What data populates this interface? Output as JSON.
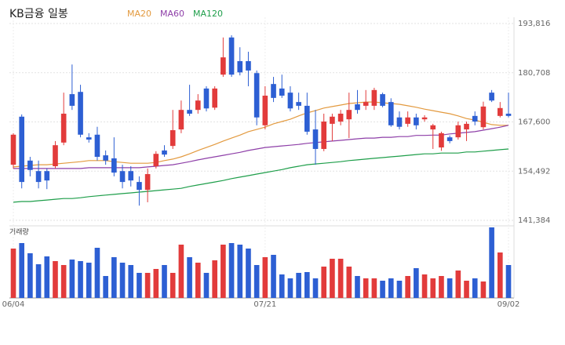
{
  "chart_data": {
    "type": "candlestick",
    "title": "KB금융 일봉",
    "volume_label": "거래량",
    "up_color": "#e23b3b",
    "down_color": "#2d5fd3",
    "grid": true,
    "categories": [
      "06/04",
      null,
      null,
      null,
      null,
      null,
      null,
      null,
      null,
      null,
      null,
      null,
      null,
      null,
      null,
      null,
      null,
      null,
      null,
      null,
      null,
      null,
      null,
      null,
      null,
      null,
      null,
      null,
      null,
      null,
      "07/21",
      null,
      null,
      null,
      null,
      null,
      null,
      null,
      null,
      null,
      null,
      null,
      null,
      null,
      null,
      null,
      null,
      null,
      null,
      null,
      null,
      null,
      null,
      null,
      null,
      null,
      null,
      null,
      null,
      "09/02"
    ],
    "open": [
      156200,
      169000,
      157300,
      154500,
      154500,
      155800,
      162100,
      175000,
      175600,
      163500,
      164200,
      158700,
      157900,
      154500,
      154500,
      151600,
      149500,
      155800,
      160000,
      161200,
      165600,
      170800,
      170800,
      176500,
      171400,
      180200,
      190100,
      183800,
      183800,
      180600,
      166700,
      177700,
      176500,
      175400,
      172900,
      171900,
      165600,
      160400,
      167100,
      167700,
      168300,
      172300,
      171900,
      171900,
      175000,
      172900,
      168800,
      167100,
      168800,
      168300,
      165600,
      160800,
      163500,
      163500,
      165600,
      169200,
      166200,
      175400,
      169200,
      169800
    ],
    "high": [
      164600,
      169600,
      158300,
      157300,
      155200,
      162500,
      175400,
      182900,
      177500,
      164600,
      166300,
      160000,
      163500,
      156200,
      155800,
      153100,
      155200,
      159800,
      161400,
      170800,
      173300,
      177500,
      175000,
      177100,
      177100,
      190100,
      190700,
      187500,
      186300,
      181300,
      177100,
      179600,
      180200,
      177100,
      175400,
      175400,
      170800,
      169800,
      169800,
      170800,
      175400,
      176100,
      176100,
      176700,
      175400,
      173900,
      170400,
      170400,
      169800,
      169400,
      167100,
      165000,
      164000,
      167700,
      167700,
      170400,
      173000,
      176100,
      172900,
      175400
    ],
    "low": [
      155200,
      149900,
      153100,
      149900,
      149700,
      155200,
      161400,
      170800,
      163500,
      162100,
      157300,
      156200,
      153100,
      149900,
      150400,
      145300,
      146200,
      155200,
      158300,
      160400,
      164600,
      169200,
      169800,
      170400,
      170800,
      179600,
      179600,
      180000,
      177100,
      166700,
      165600,
      172900,
      174000,
      170400,
      170800,
      164200,
      156200,
      159800,
      162500,
      166700,
      163300,
      169800,
      170800,
      170800,
      171500,
      166300,
      165600,
      166300,
      165600,
      167700,
      160400,
      159900,
      161900,
      162900,
      162500,
      166700,
      165600,
      172900,
      168800,
      168800
    ],
    "close": [
      164200,
      151600,
      154800,
      151600,
      152000,
      161400,
      169800,
      171900,
      164200,
      162900,
      158300,
      157300,
      154100,
      151600,
      152000,
      149500,
      153700,
      159100,
      158900,
      165400,
      170800,
      169800,
      173300,
      171200,
      176500,
      184800,
      180200,
      180800,
      181300,
      168800,
      174600,
      174000,
      174600,
      171200,
      171900,
      165000,
      160400,
      167700,
      169000,
      169800,
      170800,
      170800,
      172900,
      176100,
      171900,
      166700,
      166300,
      168800,
      166700,
      168800,
      166700,
      164600,
      162500,
      166700,
      167100,
      167700,
      171700,
      173300,
      171300,
      169200
    ],
    "volume": [
      630000,
      700000,
      570000,
      430000,
      530000,
      470000,
      420000,
      490000,
      470000,
      450000,
      640000,
      280000,
      520000,
      450000,
      420000,
      320000,
      320000,
      370000,
      420000,
      320000,
      680000,
      520000,
      450000,
      320000,
      480000,
      680000,
      700000,
      680000,
      630000,
      420000,
      520000,
      550000,
      300000,
      250000,
      320000,
      330000,
      250000,
      400000,
      500000,
      500000,
      400000,
      280000,
      250000,
      250000,
      220000,
      250000,
      220000,
      280000,
      380000,
      300000,
      250000,
      280000,
      250000,
      350000,
      220000,
      250000,
      210000,
      900000,
      580000,
      420000
    ],
    "series": [
      {
        "name": "MA20",
        "color": "#e39a3f",
        "values": [
          155600,
          155800,
          156000,
          156200,
          156200,
          156400,
          156600,
          156800,
          157000,
          157300,
          157300,
          157300,
          157000,
          156800,
          156600,
          156600,
          156600,
          156800,
          157300,
          157700,
          158300,
          159100,
          160000,
          160800,
          161600,
          162500,
          163300,
          164100,
          165000,
          165600,
          166200,
          167100,
          167700,
          168300,
          169200,
          170000,
          170600,
          171300,
          171700,
          172100,
          172500,
          172700,
          172900,
          172900,
          172700,
          172500,
          172300,
          171900,
          171500,
          171000,
          170600,
          170200,
          169800,
          169200,
          168500,
          168100,
          167500,
          166900,
          166700,
          166700
        ]
      },
      {
        "name": "MA60",
        "color": "#8e3fa8",
        "values": [
          155200,
          155200,
          155200,
          155200,
          155200,
          155200,
          155200,
          155200,
          155200,
          155400,
          155400,
          155400,
          155400,
          155400,
          155400,
          155400,
          155600,
          155800,
          156000,
          156200,
          156600,
          157000,
          157500,
          157900,
          158300,
          158700,
          159100,
          159500,
          160000,
          160400,
          160800,
          161000,
          161200,
          161400,
          161600,
          161900,
          162100,
          162300,
          162500,
          162700,
          162900,
          163100,
          163300,
          163300,
          163500,
          163500,
          163700,
          163700,
          164000,
          164000,
          164100,
          164100,
          164400,
          164600,
          164800,
          165000,
          165400,
          165800,
          166200,
          166700
        ]
      },
      {
        "name": "MA120",
        "color": "#1e9e4a",
        "values": [
          146200,
          146400,
          146400,
          146600,
          146800,
          147000,
          147200,
          147200,
          147400,
          147700,
          147900,
          148100,
          148300,
          148500,
          148700,
          148900,
          149100,
          149300,
          149500,
          149700,
          149900,
          150400,
          150800,
          151200,
          151600,
          152000,
          152500,
          152900,
          153300,
          153700,
          154100,
          154500,
          154900,
          155400,
          155800,
          156200,
          156400,
          156600,
          156800,
          157000,
          157300,
          157500,
          157700,
          157900,
          158100,
          158300,
          158500,
          158700,
          158900,
          159100,
          159100,
          159300,
          159300,
          159300,
          159600,
          159600,
          159800,
          160000,
          160200,
          160400
        ]
      }
    ],
    "ylim": [
      141384,
      193816
    ],
    "yticks": [
      {
        "value": 141384,
        "label": "141,384"
      },
      {
        "value": 154492,
        "label": "154,492"
      },
      {
        "value": 167600,
        "label": "167,600"
      },
      {
        "value": 180708,
        "label": "180,708"
      },
      {
        "value": 193816,
        "label": "193,816"
      }
    ]
  }
}
